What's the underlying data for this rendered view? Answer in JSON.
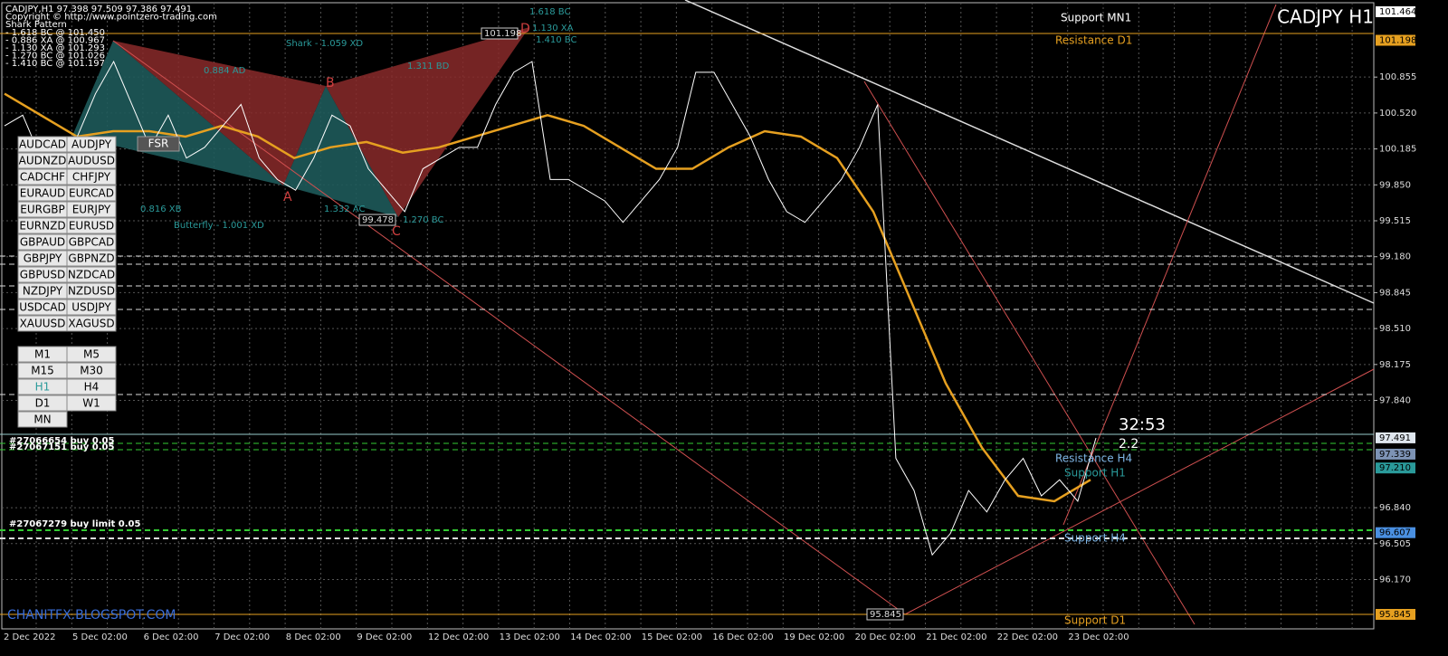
{
  "window": {
    "info_lines": [
      "CADJPY,H1  97.398 97.509 97.386 97.491",
      "Copyright © http://www.pointzero-trading.com",
      "Shark Pattern",
      "- 1.618 BC @ 101.450",
      "- 0.886 XA @ 100.967",
      "- 1.130 XA @ 101.293",
      "- 1.270 BC @ 101.026",
      "- 1.410 BC @ 101.197"
    ],
    "symbol_title": "CADJPY H1",
    "fsr": "FSR",
    "watermark": "CHANITFX.BLOGSPOT.COM"
  },
  "symbols": [
    [
      "AUDCAD",
      "AUDJPY"
    ],
    [
      "AUDNZD",
      "AUDUSD"
    ],
    [
      "CADCHF",
      "CHFJPY"
    ],
    [
      "EURAUD",
      "EURCAD"
    ],
    [
      "EURGBP",
      "EURJPY"
    ],
    [
      "EURNZD",
      "EURUSD"
    ],
    [
      "GBPAUD",
      "GBPCAD"
    ],
    [
      "GBPJPY",
      "GBPNZD"
    ],
    [
      "GBPUSD",
      "NZDCAD"
    ],
    [
      "NZDJPY",
      "NZDUSD"
    ],
    [
      "USDCAD",
      "USDJPY"
    ],
    [
      "XAUUSD",
      "XAGUSD"
    ]
  ],
  "timeframes": [
    [
      "M1",
      "M5"
    ],
    [
      "M15",
      "M30"
    ],
    [
      "H1",
      "H4"
    ],
    [
      "D1",
      "W1"
    ],
    [
      "MN",
      null
    ]
  ],
  "price_axis": {
    "ticks": [
      {
        "value": 100.855,
        "label": "100.855"
      },
      {
        "value": 100.52,
        "label": "100.520"
      },
      {
        "value": 100.185,
        "label": "100.185"
      },
      {
        "value": 99.85,
        "label": "99.850"
      },
      {
        "value": 99.515,
        "label": "99.515"
      },
      {
        "value": 99.18,
        "label": "99.180"
      },
      {
        "value": 98.845,
        "label": "98.845"
      },
      {
        "value": 98.51,
        "label": "98.510"
      },
      {
        "value": 98.175,
        "label": "98.175"
      },
      {
        "value": 97.84,
        "label": "97.840"
      },
      {
        "value": 96.84,
        "label": "96.840"
      },
      {
        "value": 96.505,
        "label": "96.505"
      },
      {
        "value": 96.17,
        "label": "96.170"
      }
    ],
    "boxes": [
      {
        "value": 101.464,
        "label": "101.464",
        "color": "#ffffff"
      },
      {
        "value": 101.198,
        "label": "101.198",
        "color": "#e6a020"
      },
      {
        "value": 97.491,
        "label": "97.491",
        "color": "#dfe6ee"
      },
      {
        "value": 97.339,
        "label": "97.339",
        "color": "#7d93b5"
      },
      {
        "value": 97.21,
        "label": "97.210",
        "color": "#2a9a9a"
      },
      {
        "value": 96.607,
        "label": "96.607",
        "color": "#4a90e2"
      },
      {
        "value": 95.845,
        "label": "95.845",
        "color": "#e6a020"
      }
    ]
  },
  "time_axis": [
    "2 Dec 2022",
    "5 Dec 02:00",
    "6 Dec 02:00",
    "7 Dec 02:00",
    "8 Dec 02:00",
    "9 Dec 02:00",
    "12 Dec 02:00",
    "13 Dec 02:00",
    "14 Dec 02:00",
    "15 Dec 02:00",
    "16 Dec 02:00",
    "19 Dec 02:00",
    "20 Dec 02:00",
    "21 Dec 02:00",
    "22 Dec 02:00",
    "23 Dec 02:00"
  ],
  "pattern_labels": [
    "Shark - 1.059 XD",
    "0.884 AD",
    "1.311 BD",
    "0.816 XB",
    "Butterfly - 1.001 XD",
    "1.332 AC",
    "1.270 BC",
    "1.130 XA",
    "1.410 BC",
    "1.618 BC",
    "A",
    "B",
    "C",
    "D"
  ],
  "price_tags": [
    {
      "value": 101.198,
      "label": "101.198"
    },
    {
      "value": 99.478,
      "label": "99.478"
    },
    {
      "value": 95.845,
      "label": "95.845"
    }
  ],
  "levels": [
    "Support MN1",
    "Resistance D1",
    "Resistance H4",
    "Support H1",
    "Support H4",
    "Support D1"
  ],
  "orders": [
    "#27066654 buy 0.05",
    "#27067151 buy 0.05",
    "#27067279 buy limit 0.05"
  ],
  "timer": {
    "countdown": "32:53",
    "spread": "2.2"
  },
  "close": [
    100.4,
    100.5,
    100.1,
    99.9,
    100.3,
    100.7,
    101.0,
    100.6,
    100.2,
    100.5,
    100.1,
    100.2,
    100.4,
    100.6,
    100.1,
    99.9,
    99.8,
    100.1,
    100.5,
    100.4,
    100.0,
    99.8,
    99.6,
    100.0,
    100.1,
    100.2,
    100.2,
    100.6,
    100.9,
    101.0,
    99.9,
    99.9,
    99.8,
    99.7,
    99.5,
    99.7,
    99.9,
    100.2,
    100.9,
    100.9,
    100.6,
    100.3,
    99.9,
    99.6,
    99.5,
    99.7,
    99.9,
    100.2,
    100.6,
    97.3,
    97.0,
    96.4,
    96.6,
    97.0,
    96.8,
    97.1,
    97.3,
    96.95,
    97.1,
    96.9,
    97.49
  ],
  "ma_slow": [
    100.7,
    100.5,
    100.3,
    100.35,
    100.35,
    100.3,
    100.4,
    100.3,
    100.1,
    100.2,
    100.25,
    100.15,
    100.2,
    100.3,
    100.4,
    100.5,
    100.4,
    100.2,
    100.0,
    100.0,
    100.2,
    100.35,
    100.3,
    100.1,
    99.6,
    98.8,
    98.0,
    97.4,
    96.95,
    96.9,
    97.1
  ]
}
